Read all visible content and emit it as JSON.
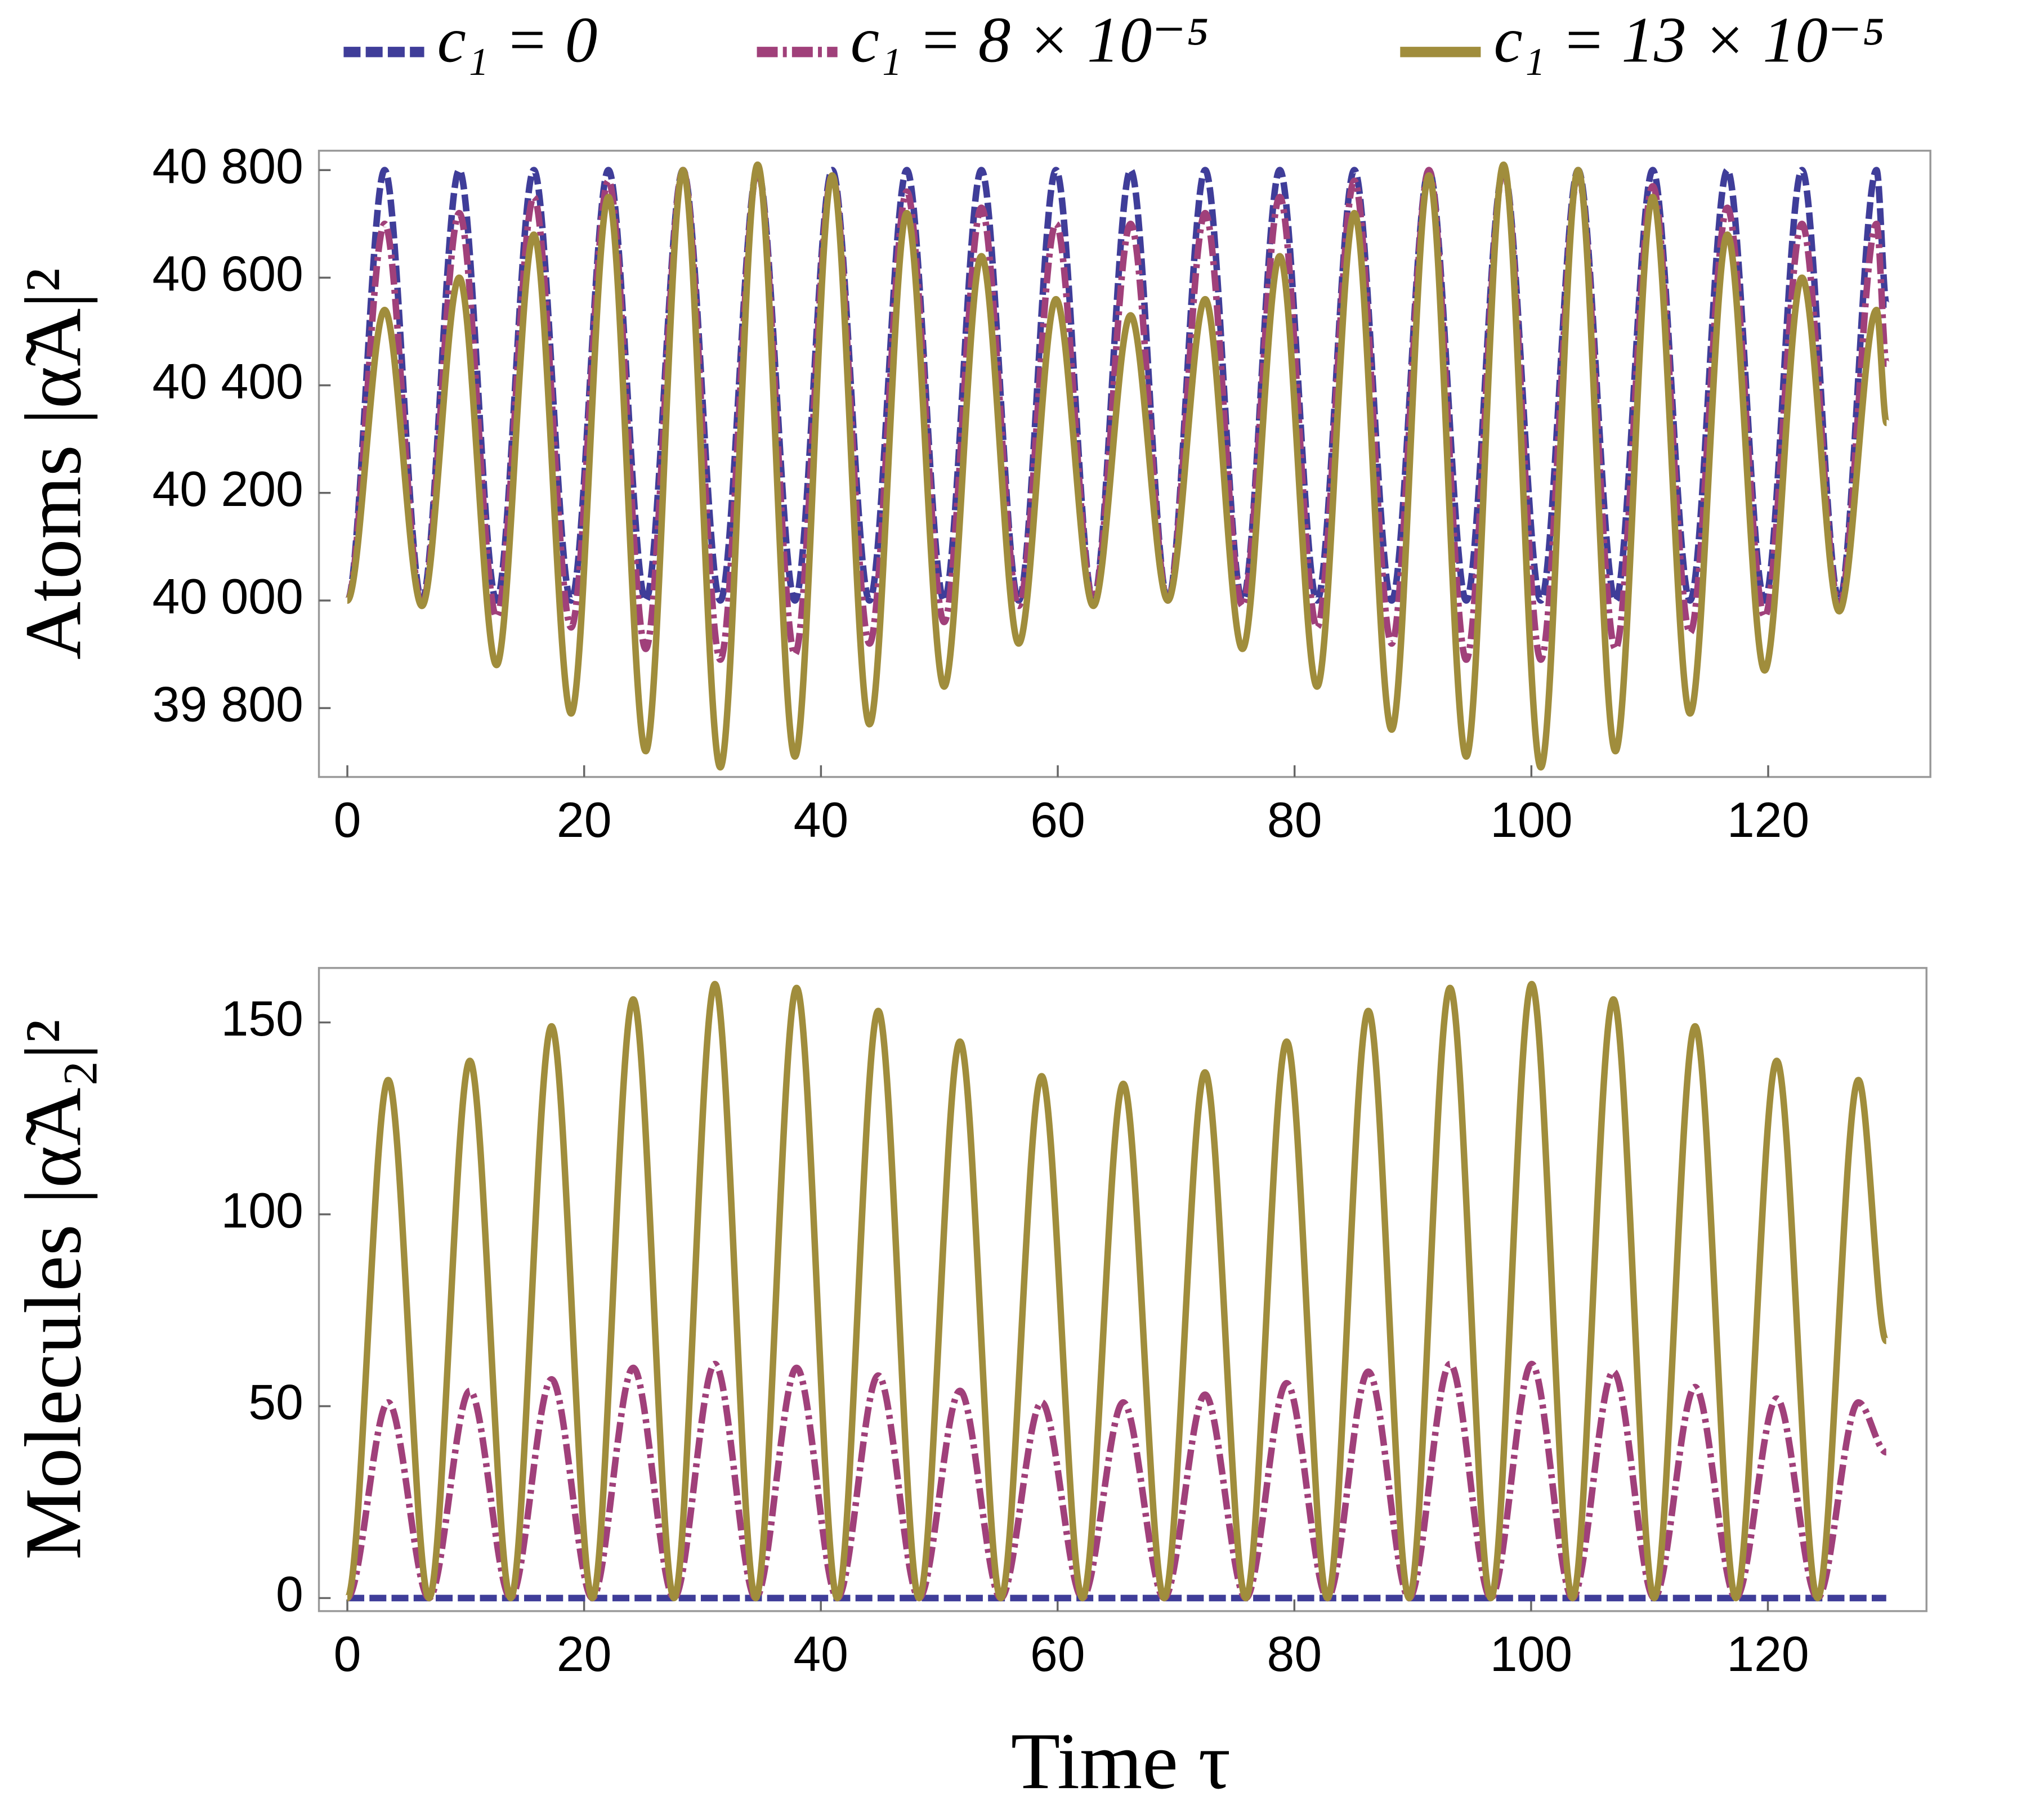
{
  "chart_data": [
    {
      "type": "line",
      "ylabel": "Atoms |α̃A|²",
      "legend": "top",
      "x": [
        0,
        3.15,
        6.3,
        9.45,
        12.6,
        15.75,
        18.9,
        22.05,
        25.2,
        28.35,
        31.5,
        34.65,
        37.8,
        40.95,
        44.1,
        47.25,
        50.4,
        53.55,
        56.7,
        59.85,
        63,
        66.15,
        69.3,
        72.45,
        75.6,
        78.75,
        81.9,
        85.05,
        88.2,
        91.35,
        94.5,
        97.65,
        100.8,
        103.95,
        107.1,
        110.25,
        113.4,
        116.55,
        119.7,
        122.85,
        126,
        129.15,
        130
      ],
      "xlim": [
        -2.4,
        133.7
      ],
      "xticks": [
        0,
        20,
        40,
        60,
        80,
        100,
        120
      ],
      "ylim": [
        39672,
        40836
      ],
      "yticks": [
        {
          "value": 39800,
          "label": "39 800"
        },
        {
          "value": 40000,
          "label": "40 000"
        },
        {
          "value": 40200,
          "label": "40 200"
        },
        {
          "value": 40400,
          "label": "40 400"
        },
        {
          "value": 40600,
          "label": "40 600"
        },
        {
          "value": 40800,
          "label": "40 800"
        }
      ],
      "series": [
        {
          "name": "c₁ = 0",
          "color": "#3f3d99",
          "dash": "dashed",
          "values": [
            40000,
            40800,
            40000,
            40800,
            40000,
            40800,
            40000,
            40800,
            40000,
            40800,
            40000,
            40800,
            40000,
            40800,
            40000,
            40800,
            40000,
            40800,
            40000,
            40800,
            40000,
            40800,
            40000,
            40800,
            40000,
            40800,
            40000,
            40800,
            40000,
            40800,
            40000,
            40800,
            40000,
            40800,
            40000,
            40800,
            40000,
            40800,
            40000,
            40800,
            40000,
            40800,
            40550
          ]
        },
        {
          "name": "c₁ = 8 × 10⁻⁵",
          "color": "#a0407a",
          "dash": "dashdot",
          "values": [
            40000,
            40700,
            39990,
            40720,
            39970,
            40750,
            39950,
            40780,
            39910,
            40800,
            39890,
            40800,
            39900,
            40790,
            39920,
            40760,
            39960,
            40730,
            39990,
            40700,
            40000,
            40700,
            40000,
            40720,
            39990,
            40750,
            39950,
            40780,
            39920,
            40800,
            39890,
            40800,
            39890,
            40790,
            39910,
            40770,
            39940,
            40730,
            39970,
            40700,
            39990,
            40700,
            40440
          ]
        },
        {
          "name": "c₁ = 13 × 10⁻⁵",
          "color": "#a08d3c",
          "dash": "solid",
          "values": [
            40000,
            40540,
            39990,
            40600,
            39880,
            40680,
            39790,
            40750,
            39720,
            40800,
            39690,
            40810,
            39710,
            40790,
            39770,
            40720,
            39840,
            40640,
            39920,
            40560,
            39990,
            40530,
            40000,
            40560,
            39910,
            40640,
            39840,
            40720,
            39760,
            40790,
            39710,
            40810,
            39690,
            40800,
            39720,
            40750,
            39790,
            40680,
            39870,
            40600,
            39980,
            40540,
            40330
          ]
        }
      ]
    },
    {
      "type": "line",
      "ylabel": "Molecules |α̃A₂|²",
      "xlabel": "Time τ",
      "x": [
        0,
        3.45,
        6.9,
        10.35,
        13.8,
        17.25,
        20.7,
        24.15,
        27.6,
        31.05,
        34.5,
        37.95,
        41.4,
        44.85,
        48.3,
        51.75,
        55.2,
        58.65,
        62.1,
        65.55,
        69,
        72.45,
        75.9,
        79.35,
        82.8,
        86.25,
        89.7,
        93.15,
        96.6,
        100.05,
        103.5,
        106.95,
        110.4,
        113.85,
        117.3,
        120.75,
        124.2,
        127.65,
        130
      ],
      "xlim": [
        -2.4,
        133.4
      ],
      "xticks": [
        0,
        20,
        40,
        60,
        80,
        100,
        120
      ],
      "ylim": [
        -3.4,
        164.2
      ],
      "yticks": [
        0,
        50,
        100,
        150
      ],
      "series": [
        {
          "color": "#3f3d99",
          "dash": "dashed",
          "values": [
            0,
            0,
            0,
            0,
            0,
            0,
            0,
            0,
            0,
            0,
            0,
            0,
            0,
            0,
            0,
            0,
            0,
            0,
            0,
            0,
            0,
            0,
            0,
            0,
            0,
            0,
            0,
            0,
            0,
            0,
            0,
            0,
            0,
            0,
            0,
            0,
            0,
            0,
            0
          ]
        },
        {
          "color": "#a0407a",
          "dash": "dashdot",
          "values": [
            0,
            51,
            0,
            54,
            0,
            57,
            0,
            60,
            0,
            61,
            0,
            60,
            0,
            58,
            0,
            54,
            0,
            51,
            0,
            51,
            0,
            53,
            0,
            56,
            0,
            59,
            0,
            61,
            0,
            61,
            0,
            59,
            0,
            55,
            0,
            52,
            0,
            51,
            38
          ]
        },
        {
          "color": "#a08d3c",
          "dash": "solid",
          "values": [
            0,
            135,
            0,
            140,
            0,
            149,
            0,
            156,
            0,
            160,
            0,
            159,
            0,
            153,
            0,
            145,
            0,
            136,
            0,
            134,
            0,
            137,
            0,
            145,
            0,
            153,
            0,
            159,
            0,
            160,
            0,
            156,
            0,
            149,
            0,
            140,
            0,
            135,
            67
          ]
        }
      ]
    }
  ]
}
